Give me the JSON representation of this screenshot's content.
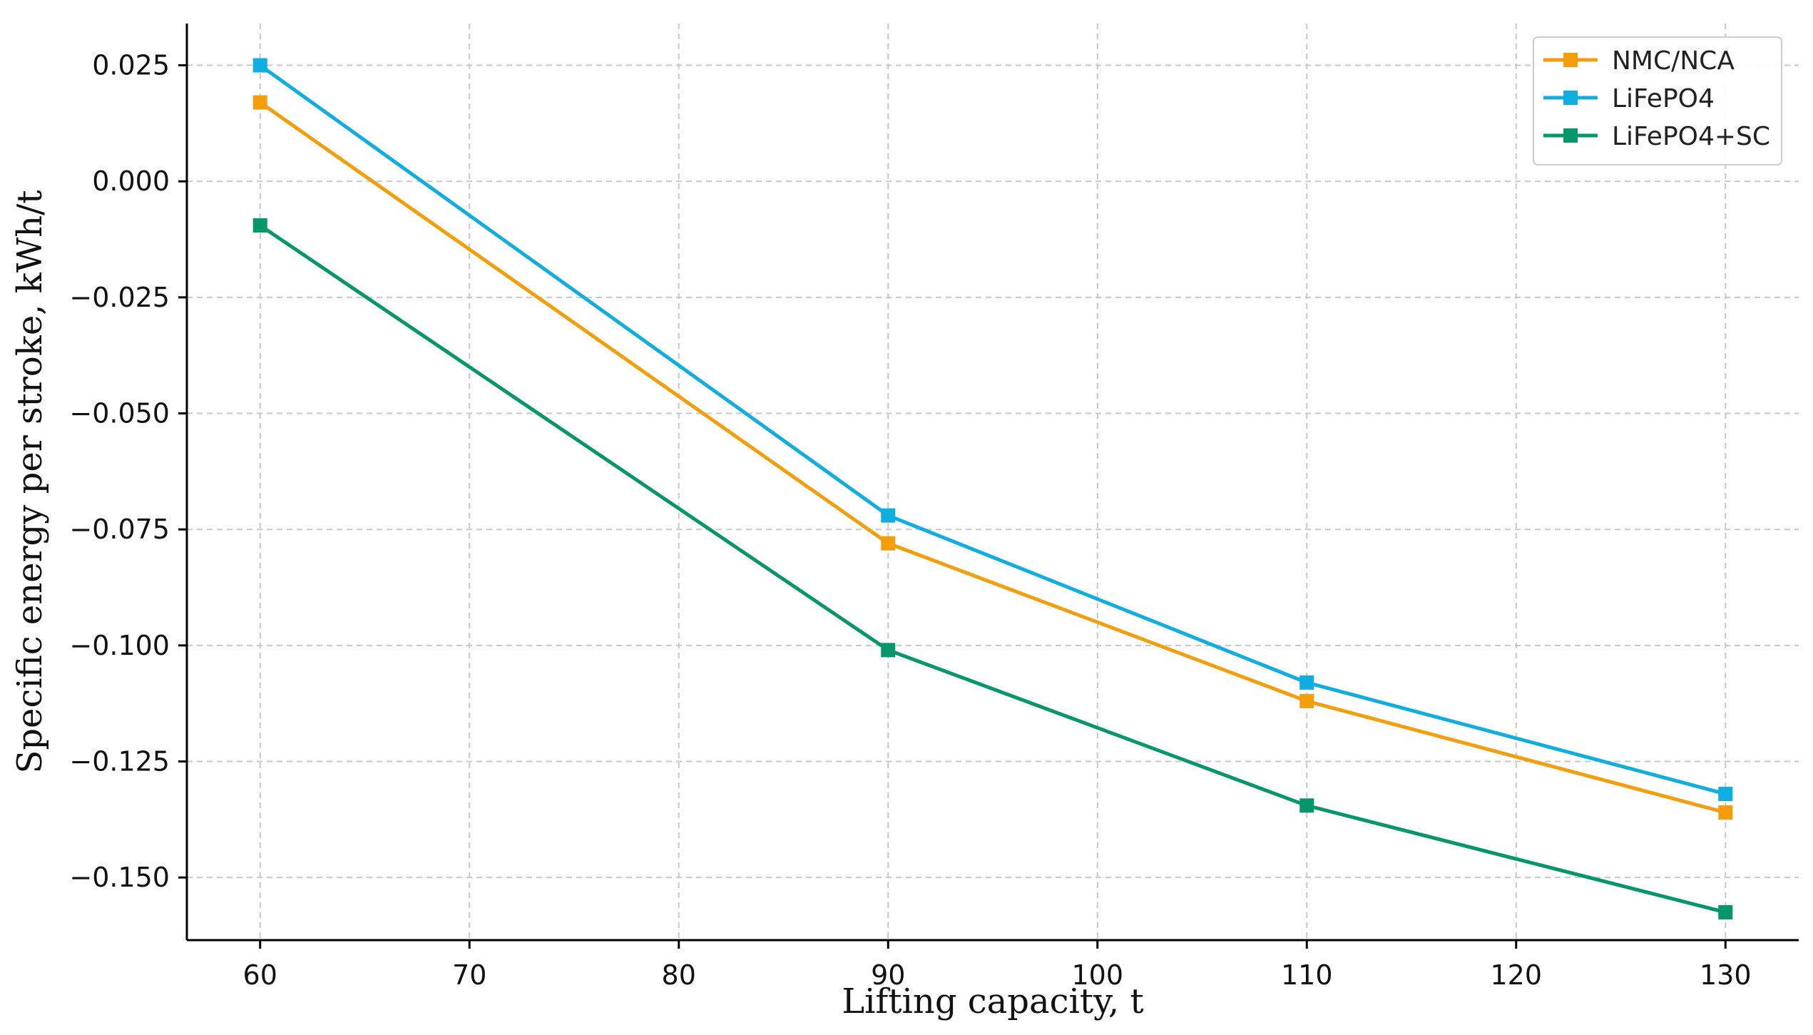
{
  "chart_data": {
    "type": "line",
    "title": "",
    "xlabel": "Lifting capacity, t",
    "ylabel": "Specific energy per stroke, kWh/t",
    "x": [
      60,
      90,
      110,
      130
    ],
    "xlim": [
      56.5,
      133.5
    ],
    "ylim": [
      -0.1635,
      0.034
    ],
    "x_ticks": [
      60,
      70,
      80,
      90,
      100,
      110,
      120,
      130
    ],
    "x_tick_labels": [
      "60",
      "70",
      "80",
      "90",
      "100",
      "110",
      "120",
      "130"
    ],
    "y_ticks": [
      0.025,
      0.0,
      -0.025,
      -0.05,
      -0.075,
      -0.1,
      -0.125,
      -0.15
    ],
    "y_tick_labels": [
      "0.025",
      "0.000",
      "−0.025",
      "−0.050",
      "−0.075",
      "−0.100",
      "−0.125",
      "−0.150"
    ],
    "grid": true,
    "legend_position": "top-right",
    "marker": "square",
    "series": [
      {
        "name": "NMC/NCA",
        "color": "#F59E0B",
        "values": [
          0.017,
          -0.078,
          -0.112,
          -0.136
        ]
      },
      {
        "name": "LiFePO4",
        "color": "#0EAFE0",
        "values": [
          0.025,
          -0.072,
          -0.108,
          -0.132
        ]
      },
      {
        "name": "LiFePO4+SC",
        "color": "#059669",
        "values": [
          -0.0095,
          -0.101,
          -0.1345,
          -0.1575
        ]
      }
    ]
  }
}
